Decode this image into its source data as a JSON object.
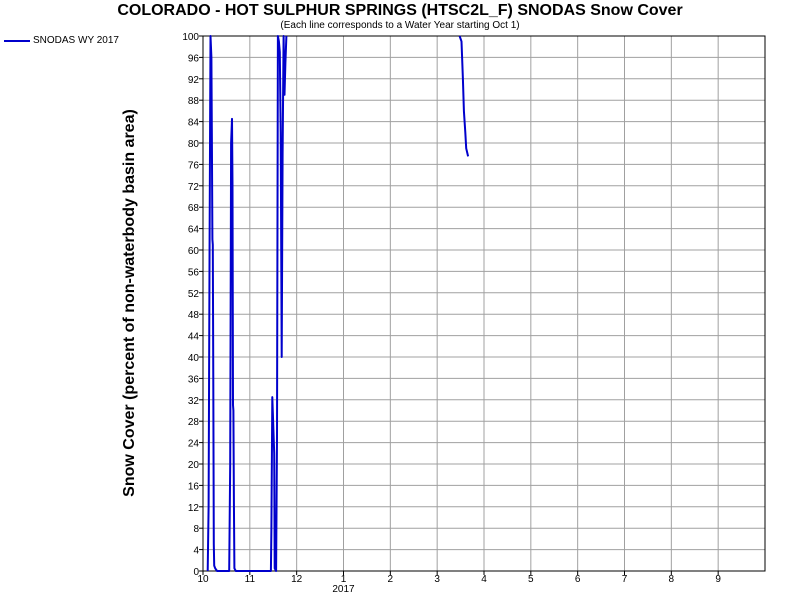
{
  "chart_data": {
    "type": "line",
    "title": "COLORADO - HOT SULPHUR SPRINGS (HTSC2L_F) SNODAS Snow Cover",
    "subtitle": "(Each line corresponds to a Water Year starting Oct 1)",
    "ylabel": "Snow Cover (percent of non-waterbody basin area)",
    "xlabel": "",
    "ylim": [
      0,
      100
    ],
    "y_ticks": [
      0,
      4,
      8,
      12,
      16,
      20,
      24,
      28,
      32,
      36,
      40,
      44,
      48,
      52,
      56,
      60,
      64,
      68,
      72,
      76,
      80,
      84,
      88,
      92,
      96,
      100
    ],
    "xlim": [
      10,
      22
    ],
    "x_ticks": [
      {
        "value": 10,
        "label": "10"
      },
      {
        "value": 11,
        "label": "11"
      },
      {
        "value": 12,
        "label": "12"
      },
      {
        "value": 13,
        "label": "1"
      },
      {
        "value": 14,
        "label": "2"
      },
      {
        "value": 15,
        "label": "3"
      },
      {
        "value": 16,
        "label": "4"
      },
      {
        "value": 17,
        "label": "5"
      },
      {
        "value": 18,
        "label": "6"
      },
      {
        "value": 19,
        "label": "7"
      },
      {
        "value": 20,
        "label": "8"
      },
      {
        "value": 21,
        "label": "9"
      }
    ],
    "x_sublabel": {
      "value": 13,
      "label": "2017"
    },
    "grid": true,
    "legend_position": "top-left",
    "series": [
      {
        "name": "SNODAS WY 2017",
        "color": "#0000cc",
        "points": [
          [
            10.1,
            0
          ],
          [
            10.12,
            12
          ],
          [
            10.14,
            62
          ],
          [
            10.16,
            100
          ],
          [
            10.18,
            96
          ],
          [
            10.19,
            80
          ],
          [
            10.2,
            62
          ],
          [
            10.21,
            61
          ],
          [
            10.22,
            35
          ],
          [
            10.23,
            5
          ],
          [
            10.24,
            1
          ],
          [
            10.26,
            0.5
          ],
          [
            10.3,
            0
          ],
          [
            10.4,
            0
          ],
          [
            10.5,
            0
          ],
          [
            10.56,
            0
          ],
          [
            10.58,
            20
          ],
          [
            10.6,
            80
          ],
          [
            10.62,
            84.5
          ],
          [
            10.63,
            72
          ],
          [
            10.64,
            31
          ],
          [
            10.65,
            30
          ],
          [
            10.66,
            13
          ],
          [
            10.67,
            0.5
          ],
          [
            10.7,
            0
          ],
          [
            10.9,
            0
          ],
          [
            11.2,
            0
          ],
          [
            11.45,
            0
          ],
          [
            11.46,
            8
          ],
          [
            11.48,
            32.5
          ],
          [
            11.5,
            27
          ],
          [
            11.52,
            22
          ],
          [
            11.53,
            0.5
          ],
          [
            11.56,
            0
          ],
          [
            11.58,
            25
          ],
          [
            11.6,
            100
          ],
          [
            11.62,
            99
          ],
          [
            11.64,
            97
          ],
          [
            11.66,
            82
          ],
          [
            11.68,
            40
          ],
          [
            11.7,
            78
          ],
          [
            11.72,
            100
          ],
          [
            11.74,
            89
          ],
          [
            11.76,
            95
          ],
          [
            11.78,
            100
          ]
        ]
      },
      {
        "name": "",
        "color": "#0000cc",
        "points": [
          [
            15.48,
            100
          ],
          [
            15.52,
            99
          ],
          [
            15.55,
            92
          ],
          [
            15.57,
            86
          ],
          [
            15.6,
            82
          ],
          [
            15.62,
            79
          ],
          [
            15.66,
            77.5
          ]
        ]
      }
    ]
  }
}
